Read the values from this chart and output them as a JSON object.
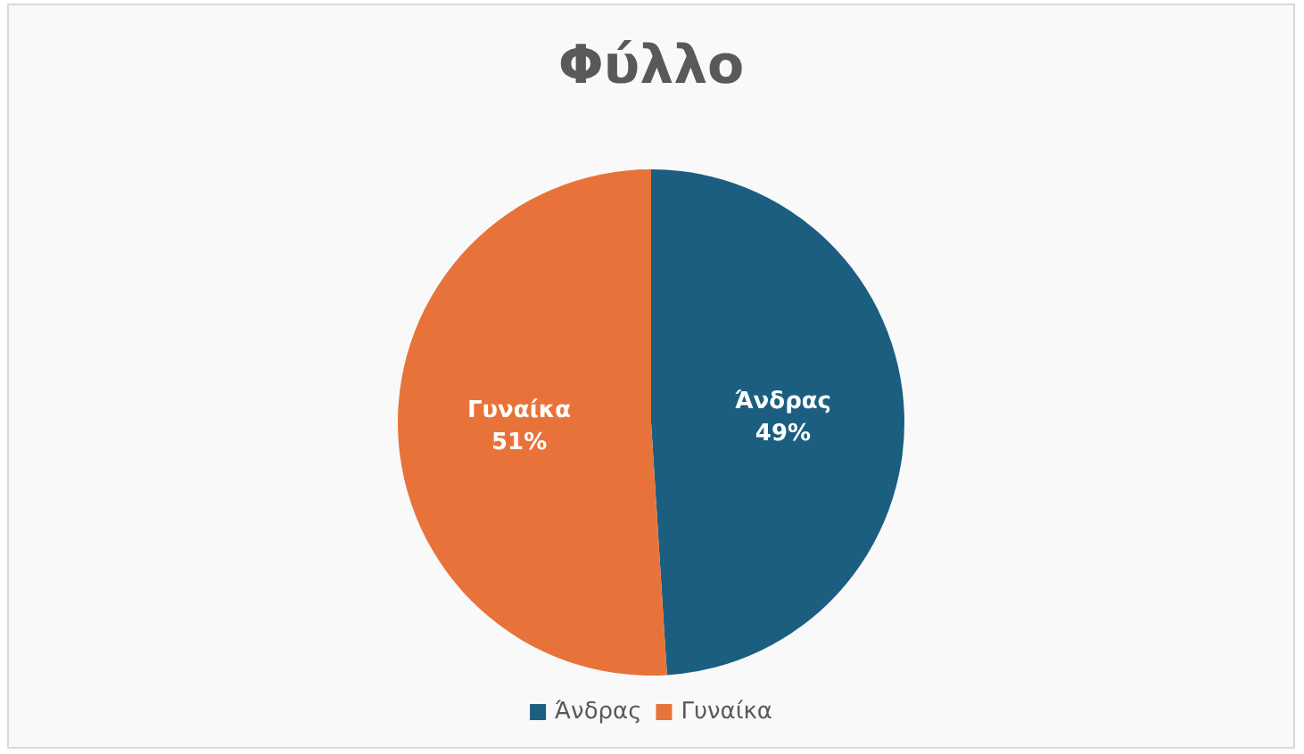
{
  "chart_data": {
    "type": "pie",
    "title": "Φύλλο",
    "categories": [
      "Άνδρας",
      "Γυναίκα"
    ],
    "values": [
      49,
      51
    ],
    "colors": [
      "#1b5e80",
      "#e8733a"
    ],
    "value_labels": [
      "49%",
      "51%"
    ],
    "legend": "bottom"
  }
}
